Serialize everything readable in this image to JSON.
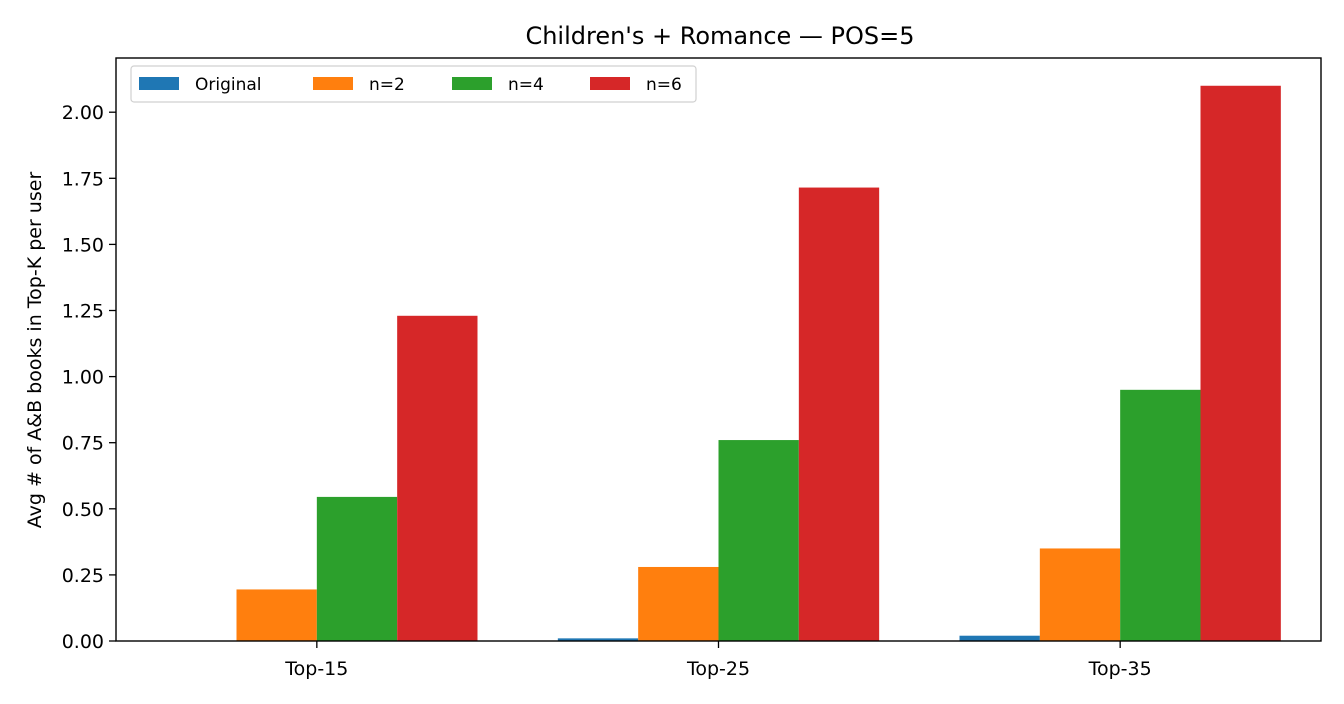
{
  "chart_data": {
    "type": "bar",
    "title": "Children's + Romance — POS=5",
    "xlabel": "",
    "ylabel": "Avg # of A&B books in Top-K per user",
    "categories": [
      "Top-15",
      "Top-25",
      "Top-35"
    ],
    "series": [
      {
        "name": "Original",
        "color": "#1f77b4",
        "values": [
          0.0,
          0.01,
          0.02
        ]
      },
      {
        "name": "n=2",
        "color": "#ff7f0e",
        "values": [
          0.195,
          0.28,
          0.35
        ]
      },
      {
        "name": "n=4",
        "color": "#2ca02c",
        "values": [
          0.545,
          0.76,
          0.95
        ]
      },
      {
        "name": "n=6",
        "color": "#d62728",
        "values": [
          1.23,
          1.715,
          2.1
        ]
      }
    ],
    "ylim": [
      0,
      2.205
    ],
    "yticks": [
      0.0,
      0.25,
      0.5,
      0.75,
      1.0,
      1.25,
      1.5,
      1.75,
      2.0
    ],
    "ytick_labels": [
      "0.00",
      "0.25",
      "0.50",
      "0.75",
      "1.00",
      "1.25",
      "1.50",
      "1.75",
      "2.00"
    ],
    "grid": false,
    "legend_position": "top-left"
  }
}
